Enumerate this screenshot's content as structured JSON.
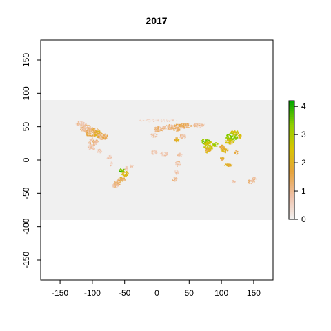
{
  "chart_data": {
    "type": "heatmap",
    "title": "2017",
    "xlabel": "",
    "ylabel": "",
    "xlim": [
      -180,
      180
    ],
    "ylim": [
      -180,
      180
    ],
    "x_ticks": [
      -150,
      -100,
      -50,
      0,
      50,
      100,
      150
    ],
    "y_ticks": [
      -150,
      -100,
      -50,
      0,
      50,
      100,
      150
    ],
    "raster_extent": {
      "xmin": -180,
      "xmax": 180,
      "ymin": -90,
      "ymax": 90
    },
    "colors": {
      "no_data_fill": "#f0f0f0",
      "scale": [
        "#f2f2f2",
        "#eebfa6",
        "#e6a33d",
        "#d8c500",
        "#8fcf00",
        "#00a600"
      ]
    },
    "legend": {
      "position": "right",
      "min": 0,
      "max": 4.2,
      "ticks": [
        0,
        1,
        2,
        3,
        4
      ]
    },
    "patches": [
      {
        "lon": -100,
        "lat": 42,
        "rx": 12,
        "ry": 7,
        "v": 1.5
      },
      {
        "lon": -92,
        "lat": 40,
        "rx": 6,
        "ry": 4,
        "v": 2.0
      },
      {
        "lon": -110,
        "lat": 48,
        "rx": 10,
        "ry": 5,
        "v": 1.0
      },
      {
        "lon": -118,
        "lat": 55,
        "rx": 8,
        "ry": 4,
        "v": 0.8
      },
      {
        "lon": -85,
        "lat": 36,
        "rx": 8,
        "ry": 5,
        "v": 1.3
      },
      {
        "lon": -100,
        "lat": 28,
        "rx": 8,
        "ry": 5,
        "v": 0.9
      },
      {
        "lon": -102,
        "lat": 20,
        "rx": 6,
        "ry": 4,
        "v": 0.7
      },
      {
        "lon": -90,
        "lat": 14,
        "rx": 4,
        "ry": 3,
        "v": 0.6
      },
      {
        "lon": -75,
        "lat": 5,
        "rx": 4,
        "ry": 3,
        "v": 0.5
      },
      {
        "lon": -72,
        "lat": -5,
        "rx": 3,
        "ry": 3,
        "v": 0.4
      },
      {
        "lon": -55,
        "lat": -15,
        "rx": 4,
        "ry": 3,
        "v": 3.5
      },
      {
        "lon": -50,
        "lat": -20,
        "rx": 5,
        "ry": 4,
        "v": 2.2
      },
      {
        "lon": -55,
        "lat": -28,
        "rx": 5,
        "ry": 4,
        "v": 1.6
      },
      {
        "lon": -62,
        "lat": -33,
        "rx": 6,
        "ry": 4,
        "v": 1.3
      },
      {
        "lon": -65,
        "lat": -38,
        "rx": 5,
        "ry": 3,
        "v": 0.9
      },
      {
        "lon": -48,
        "lat": -12,
        "rx": 3,
        "ry": 3,
        "v": 0.7
      },
      {
        "lon": -40,
        "lat": -8,
        "rx": 3,
        "ry": 2,
        "v": 0.5
      },
      {
        "lon": 2,
        "lat": 47,
        "rx": 8,
        "ry": 4,
        "v": 1.2
      },
      {
        "lon": 20,
        "lat": 50,
        "rx": 12,
        "ry": 4,
        "v": 1.0
      },
      {
        "lon": 40,
        "lat": 52,
        "rx": 14,
        "ry": 4,
        "v": 1.3
      },
      {
        "lon": 65,
        "lat": 53,
        "rx": 10,
        "ry": 3,
        "v": 0.9
      },
      {
        "lon": 30,
        "lat": 47,
        "rx": 6,
        "ry": 3,
        "v": 1.4
      },
      {
        "lon": -5,
        "lat": 38,
        "rx": 5,
        "ry": 3,
        "v": 0.7
      },
      {
        "lon": 30,
        "lat": 31,
        "rx": 4,
        "ry": 3,
        "v": 2.0
      },
      {
        "lon": 40,
        "lat": 36,
        "rx": 6,
        "ry": 3,
        "v": 0.8
      },
      {
        "lon": 75,
        "lat": 28,
        "rx": 8,
        "ry": 4,
        "v": 3.4
      },
      {
        "lon": 80,
        "lat": 22,
        "rx": 8,
        "ry": 6,
        "v": 2.6
      },
      {
        "lon": 78,
        "lat": 15,
        "rx": 5,
        "ry": 4,
        "v": 2.0
      },
      {
        "lon": 90,
        "lat": 24,
        "rx": 4,
        "ry": 3,
        "v": 3.0
      },
      {
        "lon": 115,
        "lat": 35,
        "rx": 9,
        "ry": 6,
        "v": 3.3
      },
      {
        "lon": 120,
        "lat": 42,
        "rx": 6,
        "ry": 4,
        "v": 2.5
      },
      {
        "lon": 112,
        "lat": 28,
        "rx": 7,
        "ry": 4,
        "v": 2.4
      },
      {
        "lon": 105,
        "lat": 15,
        "rx": 5,
        "ry": 4,
        "v": 2.0
      },
      {
        "lon": 100,
        "lat": 20,
        "rx": 4,
        "ry": 3,
        "v": 1.8
      },
      {
        "lon": 128,
        "lat": 36,
        "rx": 3,
        "ry": 3,
        "v": 2.2
      },
      {
        "lon": 110,
        "lat": -7,
        "rx": 6,
        "ry": 2,
        "v": 2.0
      },
      {
        "lon": 100,
        "lat": 3,
        "rx": 3,
        "ry": 3,
        "v": 1.6
      },
      {
        "lon": 122,
        "lat": 12,
        "rx": 3,
        "ry": 3,
        "v": 1.5
      },
      {
        "lon": 10,
        "lat": 10,
        "rx": 6,
        "ry": 3,
        "v": 0.6
      },
      {
        "lon": -5,
        "lat": 12,
        "rx": 5,
        "ry": 3,
        "v": 0.6
      },
      {
        "lon": 35,
        "lat": 8,
        "rx": 4,
        "ry": 3,
        "v": 0.7
      },
      {
        "lon": 32,
        "lat": -5,
        "rx": 4,
        "ry": 4,
        "v": 0.7
      },
      {
        "lon": 30,
        "lat": -18,
        "rx": 4,
        "ry": 3,
        "v": 0.7
      },
      {
        "lon": 27,
        "lat": -28,
        "rx": 4,
        "ry": 3,
        "v": 1.0
      },
      {
        "lon": 145,
        "lat": -32,
        "rx": 6,
        "ry": 3,
        "v": 1.0
      },
      {
        "lon": 118,
        "lat": -32,
        "rx": 3,
        "ry": 2,
        "v": 0.7
      },
      {
        "lon": 150,
        "lat": -27,
        "rx": 3,
        "ry": 2,
        "v": 0.8
      },
      {
        "lon": 0,
        "lat": 60,
        "rx": 30,
        "ry": 2,
        "v": 0.3
      }
    ]
  }
}
